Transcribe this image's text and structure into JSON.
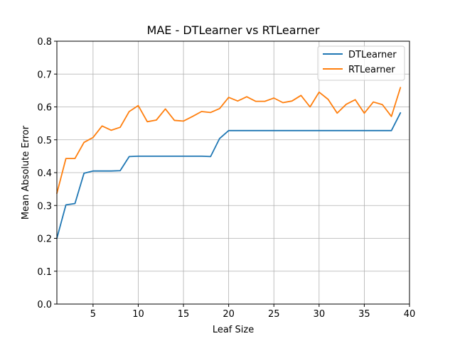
{
  "chart_data": {
    "type": "line",
    "title": "MAE - DTLearner vs RTLearner",
    "xlabel": "Leaf Size",
    "ylabel": "Mean Absolute Error",
    "xlim": [
      1,
      40
    ],
    "ylim": [
      0,
      0.8
    ],
    "xticks": [
      5,
      10,
      15,
      20,
      25,
      30,
      35,
      40
    ],
    "yticks": [
      0.0,
      0.1,
      0.2,
      0.3,
      0.4,
      0.5,
      0.6,
      0.7,
      0.8
    ],
    "grid": true,
    "legend_position": "upper-right",
    "x": [
      1,
      2,
      3,
      4,
      5,
      6,
      7,
      8,
      9,
      10,
      11,
      12,
      13,
      14,
      15,
      16,
      17,
      18,
      19,
      20,
      21,
      22,
      23,
      24,
      25,
      26,
      27,
      28,
      29,
      30,
      31,
      32,
      33,
      34,
      35,
      36,
      37,
      38,
      39
    ],
    "series": [
      {
        "name": "DTLearner",
        "color": "#1f77b4",
        "values": [
          0.2,
          0.302,
          0.306,
          0.398,
          0.405,
          0.405,
          0.405,
          0.406,
          0.449,
          0.45,
          0.45,
          0.45,
          0.45,
          0.45,
          0.45,
          0.45,
          0.45,
          0.449,
          0.504,
          0.528,
          0.528,
          0.528,
          0.528,
          0.528,
          0.528,
          0.528,
          0.528,
          0.528,
          0.528,
          0.528,
          0.528,
          0.528,
          0.528,
          0.528,
          0.528,
          0.528,
          0.528,
          0.528,
          0.582
        ]
      },
      {
        "name": "RTLearner",
        "color": "#ff7f0e",
        "values": [
          0.337,
          0.443,
          0.443,
          0.492,
          0.507,
          0.542,
          0.529,
          0.538,
          0.586,
          0.604,
          0.555,
          0.56,
          0.594,
          0.559,
          0.557,
          0.571,
          0.586,
          0.583,
          0.595,
          0.629,
          0.618,
          0.631,
          0.617,
          0.617,
          0.627,
          0.613,
          0.618,
          0.635,
          0.6,
          0.645,
          0.623,
          0.581,
          0.608,
          0.622,
          0.581,
          0.615,
          0.607,
          0.571,
          0.659
        ]
      }
    ]
  }
}
